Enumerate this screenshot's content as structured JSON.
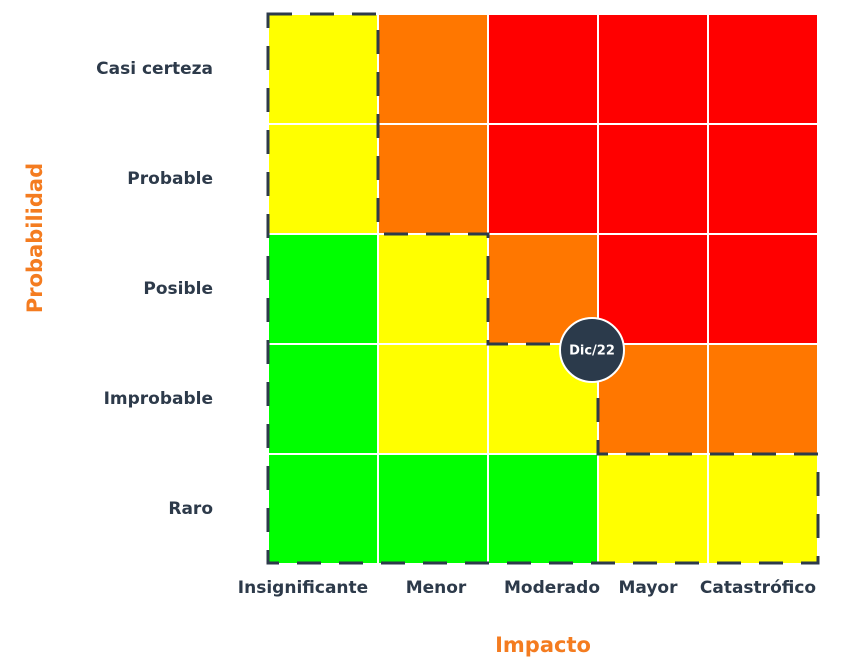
{
  "chart_data": {
    "type": "risk-matrix",
    "x_label": "Impacto",
    "y_label": "Probabilidad",
    "columns": [
      "Insignificante",
      "Menor",
      "Moderado",
      "Mayor",
      "Catastrófico"
    ],
    "rows": [
      "Casi certeza",
      "Probable",
      "Posible",
      "Improbable",
      "Raro"
    ],
    "cell_colors": [
      [
        "#ffff00",
        "#ff7700",
        "#ff0000",
        "#ff0000",
        "#ff0000"
      ],
      [
        "#ffff00",
        "#ff7700",
        "#ff0000",
        "#ff0000",
        "#ff0000"
      ],
      [
        "#00ff00",
        "#ffff00",
        "#ff7700",
        "#ff0000",
        "#ff0000"
      ],
      [
        "#00ff00",
        "#ffff00",
        "#ffff00",
        "#ff7700",
        "#ff7700"
      ],
      [
        "#00ff00",
        "#00ff00",
        "#00ff00",
        "#ffff00",
        "#ffff00"
      ]
    ],
    "marker_label": "Dic/22"
  }
}
